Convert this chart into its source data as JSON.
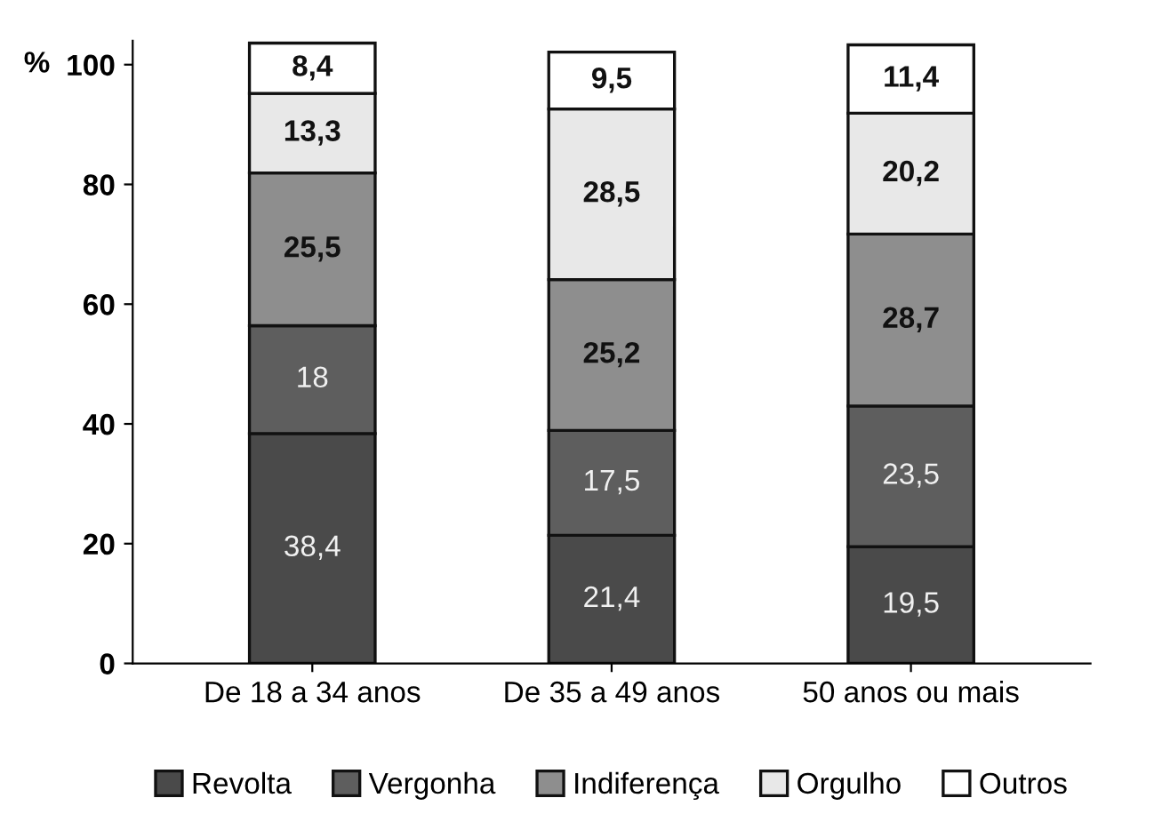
{
  "chart_data": {
    "type": "bar",
    "stacked": true,
    "ylabel": "%",
    "categories": [
      "De 18 a 34 anos",
      "De 35 a 49 anos",
      "50 anos ou mais"
    ],
    "series": [
      {
        "name": "Revolta",
        "color": "#4a4a4a",
        "values": [
          38.4,
          21.4,
          19.5
        ],
        "value_labels": [
          "38,4",
          "21,4",
          "19,5"
        ]
      },
      {
        "name": "Vergonha",
        "color": "#5e5e5e",
        "values": [
          18,
          17.5,
          23.5
        ],
        "value_labels": [
          "18",
          "17,5",
          "23,5"
        ]
      },
      {
        "name": "Indiferença",
        "color": "#8e8e8e",
        "values": [
          25.5,
          25.2,
          28.7
        ],
        "value_labels": [
          "25,5",
          "25,2",
          "28,7"
        ]
      },
      {
        "name": "Orgulho",
        "color": "#e8e8e8",
        "values": [
          13.3,
          28.5,
          20.2
        ],
        "value_labels": [
          "13,3",
          "28,5",
          "20,2"
        ]
      },
      {
        "name": "Outros",
        "color": "#ffffff",
        "values": [
          8.4,
          9.5,
          11.4
        ],
        "value_labels": [
          "8,4",
          "9,5",
          "11,4"
        ]
      }
    ],
    "ylim": [
      0,
      104
    ],
    "yticks": [
      0,
      20,
      40,
      60,
      80,
      100
    ],
    "grid": false,
    "legend": "bottom"
  }
}
